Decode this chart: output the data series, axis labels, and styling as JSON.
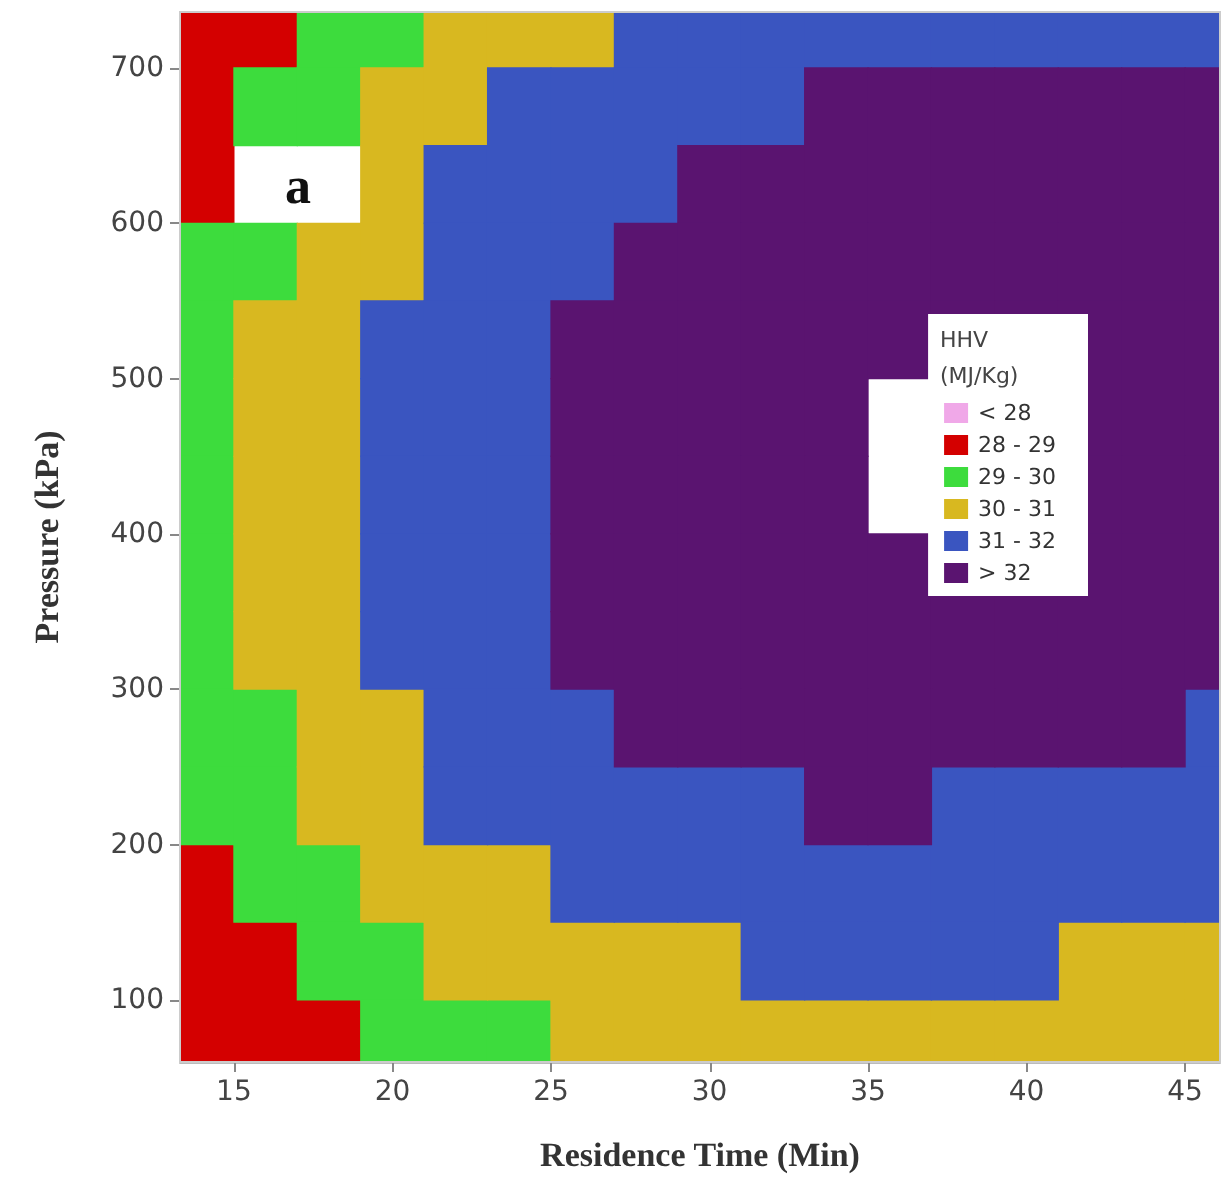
{
  "chart_data": {
    "type": "scatter",
    "marker": "square",
    "xlabel": "Residence Time (Min)",
    "ylabel": "Pressure (kPa)",
    "legend_title": "HHV (MJ/Kg)",
    "legend": "right",
    "annotations": [
      "a"
    ],
    "series": [
      {
        "name": "< 28",
        "color": "#f0a8e8"
      },
      {
        "name": "28 - 29",
        "color": "#d40000",
        "x": [
          14,
          16,
          14,
          14,
          14,
          14,
          16,
          14,
          16,
          18
        ],
        "values": [
          725,
          725,
          675,
          625,
          175,
          125,
          125,
          75,
          75,
          75
        ]
      },
      {
        "name": "29 - 30",
        "color": "#3ddc3d",
        "x": [
          18,
          20,
          16,
          18,
          14,
          16,
          14,
          14,
          14,
          14,
          14,
          14,
          16,
          14,
          16,
          16,
          18,
          18,
          20,
          20,
          22,
          24
        ],
        "values": [
          725,
          725,
          675,
          675,
          575,
          575,
          525,
          475,
          425,
          375,
          325,
          275,
          275,
          225,
          225,
          175,
          175,
          125,
          125,
          75,
          75,
          75
        ]
      },
      {
        "name": "30 - 31",
        "color": "#d8b820",
        "x": [
          22,
          24,
          26,
          20,
          22,
          20,
          18,
          20,
          16,
          18,
          16,
          18,
          16,
          18,
          16,
          18,
          16,
          18,
          18,
          20,
          18,
          20,
          20,
          22,
          24,
          22,
          24,
          26,
          28,
          30,
          42,
          44,
          46,
          26,
          28,
          30,
          32,
          34,
          36,
          38,
          40,
          42,
          44,
          46
        ],
        "values": [
          725,
          725,
          725,
          675,
          675,
          625,
          575,
          575,
          525,
          525,
          475,
          475,
          425,
          425,
          375,
          375,
          325,
          325,
          275,
          275,
          225,
          225,
          175,
          175,
          175,
          125,
          125,
          125,
          125,
          125,
          125,
          125,
          125,
          75,
          75,
          75,
          75,
          75,
          75,
          75,
          75,
          75,
          75,
          75
        ]
      },
      {
        "name": "31 - 32",
        "color": "#3a55c0",
        "x": [
          28,
          30,
          32,
          34,
          36,
          38,
          40,
          42,
          44,
          46,
          24,
          26,
          28,
          30,
          32,
          22,
          24,
          26,
          28,
          22,
          24,
          26,
          20,
          22,
          24,
          20,
          22,
          24,
          20,
          22,
          24,
          20,
          22,
          24,
          20,
          22,
          24,
          22,
          24,
          26,
          46,
          22,
          24,
          26,
          28,
          30,
          32,
          38,
          40,
          42,
          44,
          46,
          26,
          28,
          30,
          32,
          34,
          36,
          38,
          40,
          42,
          44,
          46,
          32,
          34,
          36,
          38,
          40
        ],
        "values": [
          725,
          725,
          725,
          725,
          725,
          725,
          725,
          725,
          725,
          725,
          675,
          675,
          675,
          675,
          675,
          625,
          625,
          625,
          625,
          575,
          575,
          575,
          525,
          525,
          525,
          475,
          475,
          475,
          425,
          425,
          425,
          375,
          375,
          375,
          325,
          325,
          325,
          275,
          275,
          275,
          275,
          225,
          225,
          225,
          225,
          225,
          225,
          225,
          225,
          225,
          225,
          225,
          175,
          175,
          175,
          175,
          175,
          175,
          175,
          175,
          175,
          175,
          175,
          125,
          125,
          125,
          125,
          125
        ]
      },
      {
        "name": "> 32",
        "color": "#5a1470",
        "x": [
          34,
          36,
          38,
          40,
          42,
          44,
          46,
          30,
          32,
          34,
          36,
          38,
          40,
          42,
          44,
          46,
          28,
          30,
          32,
          34,
          36,
          38,
          40,
          42,
          44,
          46,
          26,
          28,
          30,
          32,
          34,
          36,
          38,
          40,
          42,
          44,
          46,
          26,
          28,
          30,
          32,
          34,
          42,
          44,
          46,
          26,
          28,
          30,
          32,
          34,
          42,
          44,
          46,
          26,
          28,
          30,
          32,
          34,
          36,
          38,
          40,
          42,
          44,
          46,
          26,
          28,
          30,
          32,
          34,
          36,
          38,
          40,
          42,
          44,
          46,
          28,
          30,
          32,
          34,
          36,
          38,
          40,
          42,
          44,
          34,
          36
        ],
        "values": [
          675,
          675,
          675,
          675,
          675,
          675,
          675,
          625,
          625,
          625,
          625,
          625,
          625,
          625,
          625,
          625,
          575,
          575,
          575,
          575,
          575,
          575,
          575,
          575,
          575,
          575,
          525,
          525,
          525,
          525,
          525,
          525,
          525,
          525,
          525,
          525,
          525,
          475,
          475,
          475,
          475,
          475,
          475,
          475,
          475,
          425,
          425,
          425,
          425,
          425,
          425,
          425,
          425,
          375,
          375,
          375,
          375,
          375,
          375,
          375,
          375,
          375,
          375,
          375,
          325,
          325,
          325,
          325,
          325,
          325,
          325,
          325,
          325,
          325,
          325,
          275,
          275,
          275,
          275,
          275,
          275,
          275,
          275,
          275,
          225,
          225
        ]
      }
    ],
    "xlim": [
      13.3,
      46.1
    ],
    "ylim": [
      60,
      736
    ],
    "xticks": [
      15,
      20,
      25,
      30,
      35,
      40,
      45
    ],
    "yticks": [
      100,
      200,
      300,
      400,
      500,
      600,
      700
    ],
    "grid": false
  }
}
